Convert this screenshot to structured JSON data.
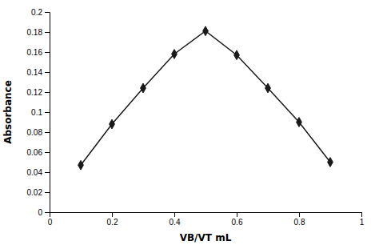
{
  "chart_data": {
    "type": "line",
    "x": [
      0.1,
      0.2,
      0.3,
      0.4,
      0.5,
      0.6,
      0.7,
      0.8,
      0.9
    ],
    "values": [
      0.047,
      0.088,
      0.124,
      0.158,
      0.181,
      0.157,
      0.124,
      0.09,
      0.05
    ],
    "xlabel": "VB/VT mL",
    "ylabel": "Absorbance",
    "xlim": [
      0,
      1.0
    ],
    "ylim": [
      0,
      0.2
    ],
    "xticks": [
      0,
      0.2,
      0.4,
      0.6,
      0.8,
      1
    ],
    "yticks": [
      0,
      0.02,
      0.04,
      0.06,
      0.08,
      0.1,
      0.12,
      0.14,
      0.16,
      0.18,
      0.2
    ],
    "color": "#1a1a1a",
    "marker": "diamond",
    "grid": false
  }
}
